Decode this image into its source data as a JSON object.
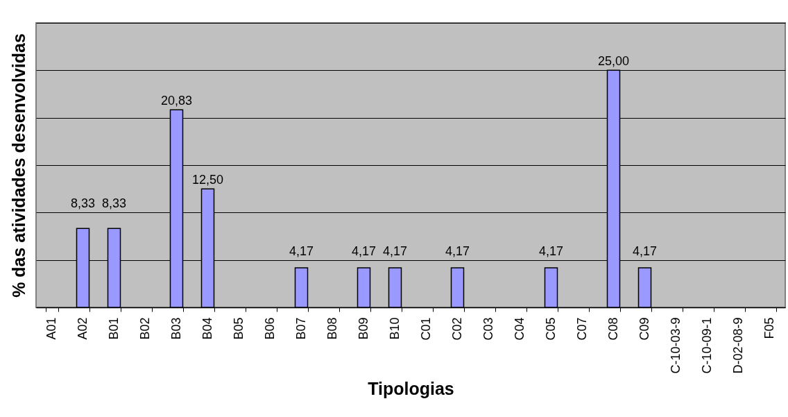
{
  "chart_data": {
    "type": "bar",
    "xlabel": "Tipologias",
    "ylabel": "% das atividades desenvolvidas",
    "categories": [
      "A01",
      "A02",
      "B01",
      "B02",
      "B03",
      "B04",
      "B05",
      "B06",
      "B07",
      "B08",
      "B09",
      "B10",
      "C01",
      "C02",
      "C03",
      "C04",
      "C05",
      "C07",
      "C08",
      "C09",
      "C-10-03-9",
      "C-10-09-1",
      "D-02-08-9",
      "F05"
    ],
    "values": [
      null,
      8.33,
      8.33,
      null,
      20.83,
      12.5,
      null,
      null,
      4.17,
      null,
      4.17,
      4.17,
      null,
      4.17,
      null,
      null,
      4.17,
      null,
      25.0,
      4.17,
      null,
      null,
      null,
      null
    ],
    "value_labels": [
      null,
      "8,33",
      "8,33",
      null,
      "20,83",
      "12,50",
      null,
      null,
      "4,17",
      null,
      "4,17",
      "4,17",
      null,
      "4,17",
      null,
      null,
      "4,17",
      null,
      "25,00",
      "4,17",
      null,
      null,
      null,
      null
    ],
    "color": "#9999ff",
    "ylim": [
      0,
      30
    ],
    "yticks": [
      {
        "value": 0,
        "label": null
      },
      {
        "value": 5,
        "label": null
      },
      {
        "value": 10,
        "label": null
      },
      {
        "value": 15,
        "label": null
      },
      {
        "value": 20,
        "label": null
      },
      {
        "value": 25,
        "label": null
      },
      {
        "value": 30,
        "label": null
      }
    ],
    "tick_labels": "x",
    "grid": "y"
  }
}
